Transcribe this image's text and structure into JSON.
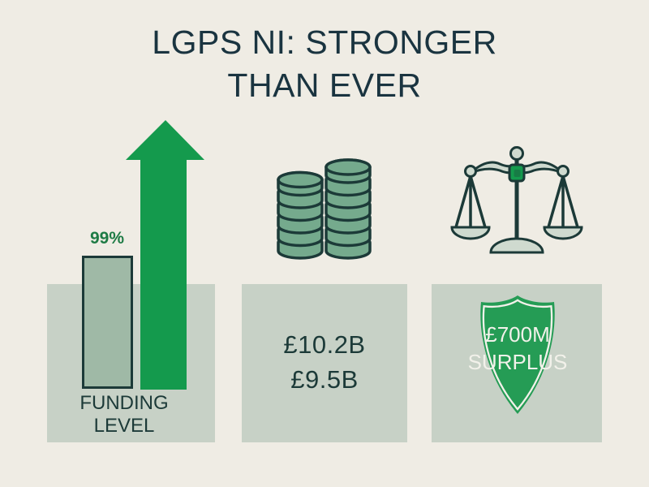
{
  "title": {
    "line1": "LGPS NI: STRONGER",
    "line2": "THAN EVER"
  },
  "funding_section": {
    "bar_value_label": "99%",
    "caption_line1": "FUNDING",
    "caption_line2": "LEVEL",
    "icon": "up-arrow-icon"
  },
  "assets_section": {
    "value_primary": "£10.2B",
    "value_secondary": "£9.5B",
    "icon": "coin-stacks-icon",
    "coin_stacks": [
      6,
      7
    ]
  },
  "surplus_section": {
    "shield_line1": "£700M",
    "shield_line2": "SURPLUS",
    "icon": "balance-scale-icon"
  },
  "colors": {
    "background": "#efece4",
    "panel": "#c7d1c6",
    "ink": "#1c3a38",
    "title_ink": "#1a3440",
    "arrow_green": "#149a4d",
    "label_green": "#1e7b45",
    "bar_fill": "#9fb9a6",
    "coin_fill": "#75aa8d",
    "icon_fill": "#cfdacf",
    "shield_green": "#259c55",
    "shield_text": "#f2f1ea",
    "pivot_inner": "#177c45"
  },
  "chart_data": {
    "type": "bar",
    "title": "LGPS NI: STRONGER THAN EVER",
    "categories": [
      "FUNDING LEVEL"
    ],
    "values": [
      99
    ],
    "value_labels": [
      "99%"
    ],
    "unit": "%",
    "ylim": [
      0,
      110
    ],
    "trend": "up",
    "annotations": [
      "£10.2B",
      "£9.5B",
      "£700M SURPLUS"
    ]
  }
}
